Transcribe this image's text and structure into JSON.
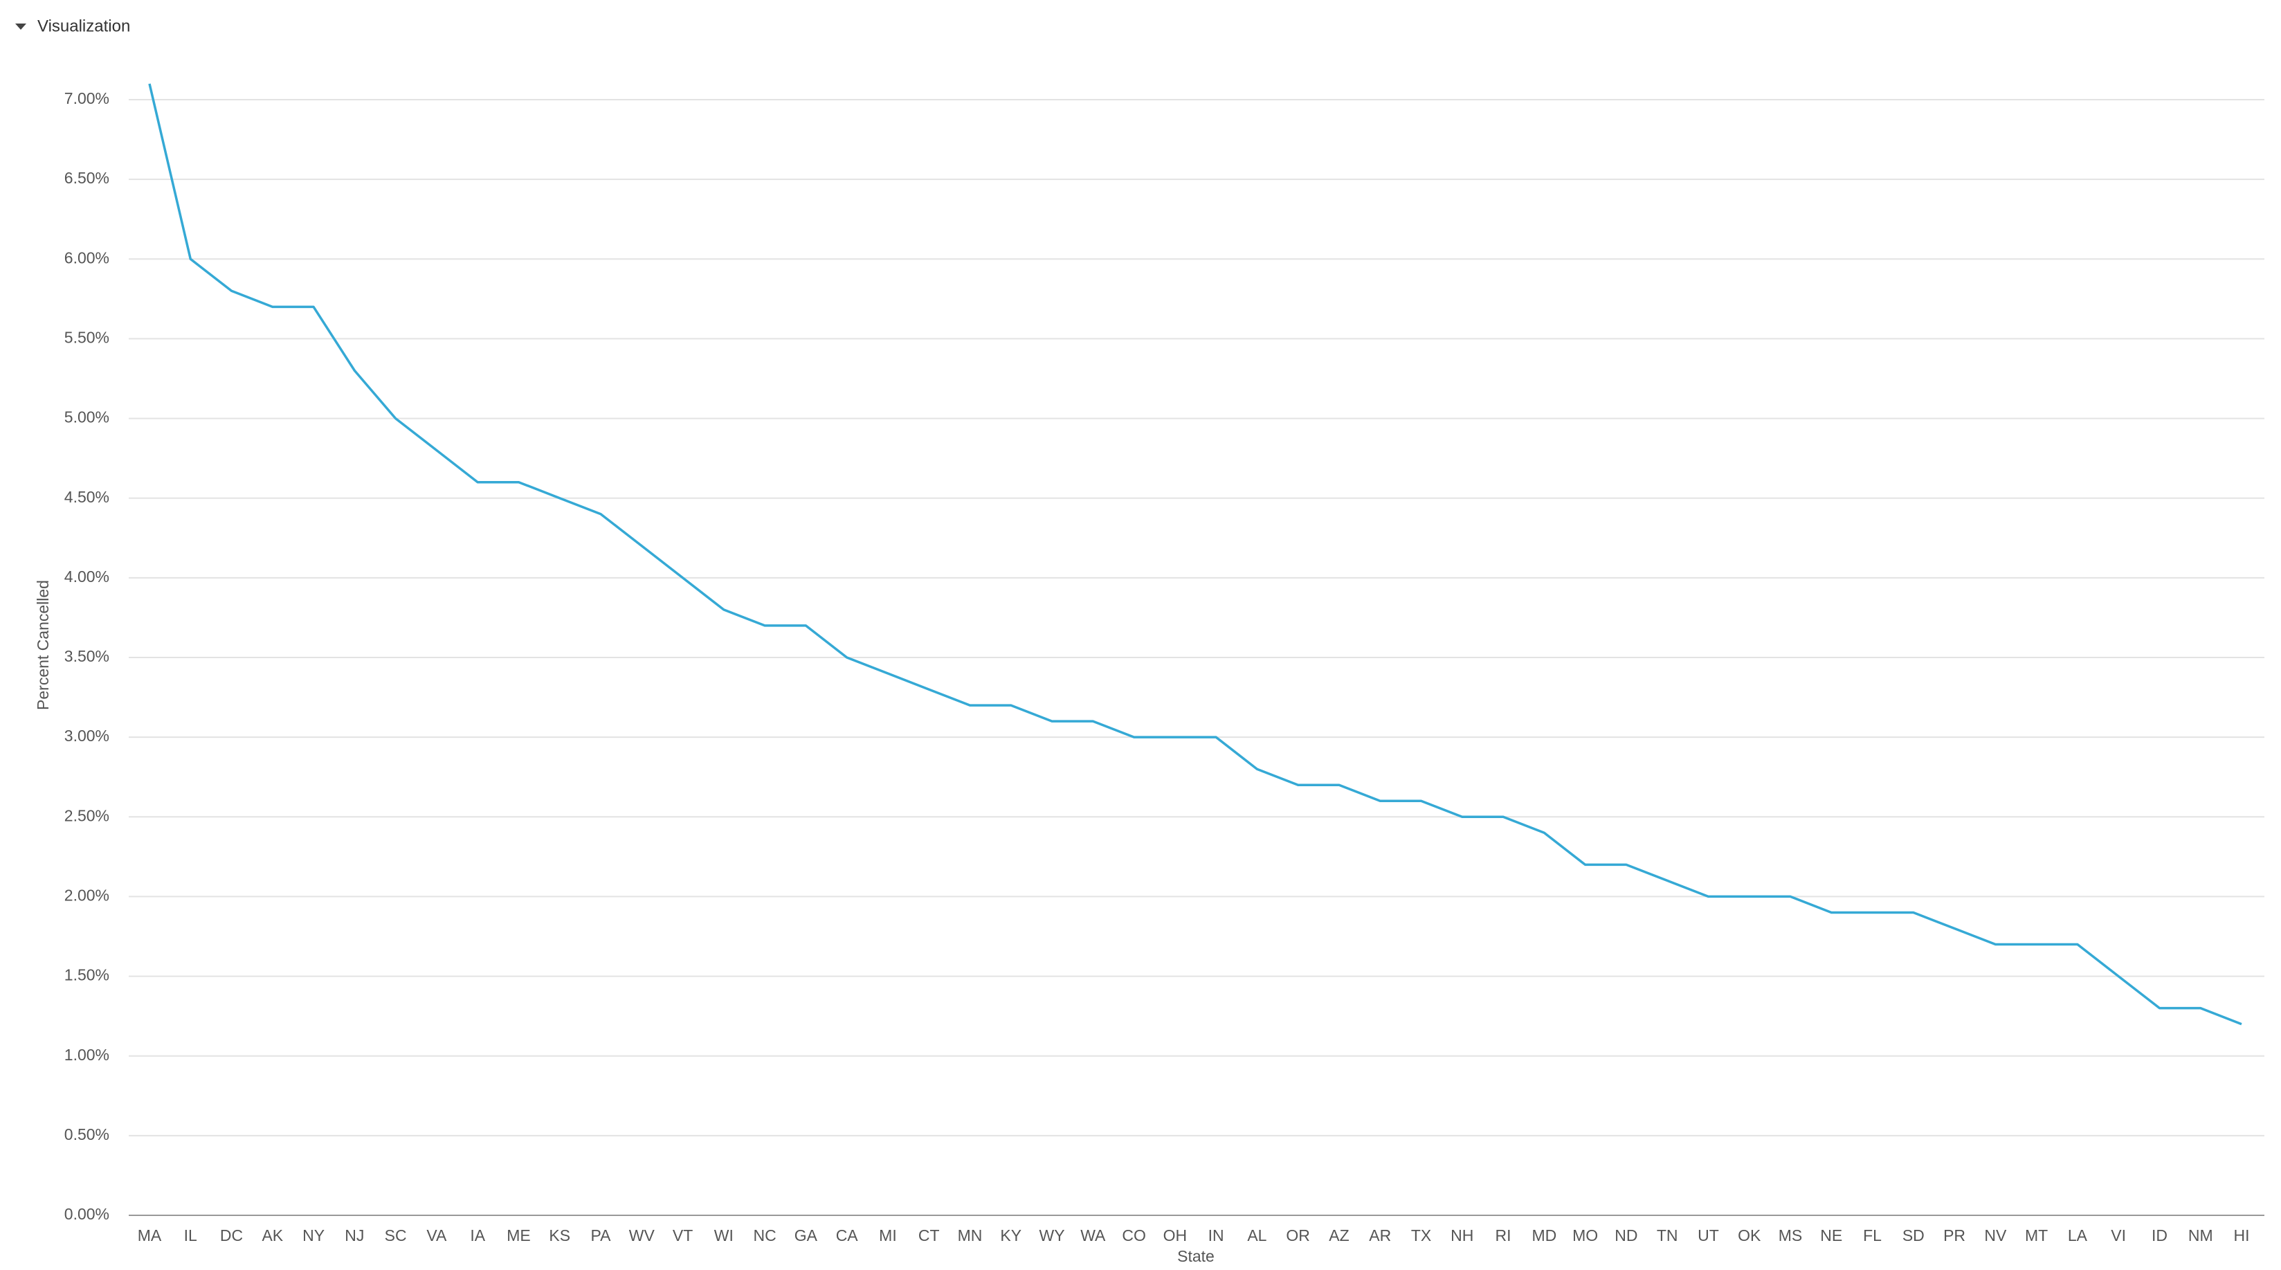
{
  "header": {
    "title": "Visualization"
  },
  "chart_data": {
    "type": "line",
    "x_label": "State",
    "y_label": "Percent Cancelled",
    "categories": [
      "MA",
      "IL",
      "DC",
      "AK",
      "NY",
      "NJ",
      "SC",
      "VA",
      "IA",
      "ME",
      "KS",
      "PA",
      "WV",
      "VT",
      "WI",
      "NC",
      "GA",
      "CA",
      "MI",
      "CT",
      "MN",
      "KY",
      "WY",
      "WA",
      "CO",
      "OH",
      "IN",
      "AL",
      "OR",
      "AZ",
      "AR",
      "TX",
      "NH",
      "RI",
      "MD",
      "MO",
      "ND",
      "TN",
      "UT",
      "OK",
      "MS",
      "NE",
      "FL",
      "SD",
      "PR",
      "NV",
      "MT",
      "LA",
      "VI",
      "ID",
      "NM",
      "HI"
    ],
    "series": [
      {
        "name": "Percent Cancelled",
        "color": "#35a9d5",
        "values": [
          7.1,
          6.0,
          5.8,
          5.7,
          5.7,
          5.3,
          5.0,
          4.8,
          4.6,
          4.6,
          4.5,
          4.4,
          4.2,
          4.0,
          3.8,
          3.7,
          3.7,
          3.5,
          3.4,
          3.3,
          3.2,
          3.2,
          3.1,
          3.1,
          3.0,
          3.0,
          3.0,
          2.8,
          2.7,
          2.7,
          2.6,
          2.6,
          2.5,
          2.5,
          2.4,
          2.2,
          2.2,
          2.1,
          2.0,
          2.0,
          2.0,
          1.9,
          1.9,
          1.9,
          1.8,
          1.7,
          1.7,
          1.7,
          1.5,
          1.3,
          1.3,
          1.2
        ]
      }
    ],
    "ylim": [
      0,
      7.1
    ],
    "yticks": [
      {
        "value": 0,
        "label": "0.00%"
      },
      {
        "value": 0.5,
        "label": "0.50%"
      },
      {
        "value": 1,
        "label": "1.00%"
      },
      {
        "value": 1.5,
        "label": "1.50%"
      },
      {
        "value": 2,
        "label": "2.00%"
      },
      {
        "value": 2.5,
        "label": "2.50%"
      },
      {
        "value": 3,
        "label": "3.00%"
      },
      {
        "value": 3.5,
        "label": "3.50%"
      },
      {
        "value": 4,
        "label": "4.00%"
      },
      {
        "value": 4.5,
        "label": "4.50%"
      },
      {
        "value": 5,
        "label": "5.00%"
      },
      {
        "value": 5.5,
        "label": "5.50%"
      },
      {
        "value": 6,
        "label": "6.00%"
      },
      {
        "value": 6.5,
        "label": "6.50%"
      },
      {
        "value": 7,
        "label": "7.00%"
      }
    ],
    "grid": true
  }
}
